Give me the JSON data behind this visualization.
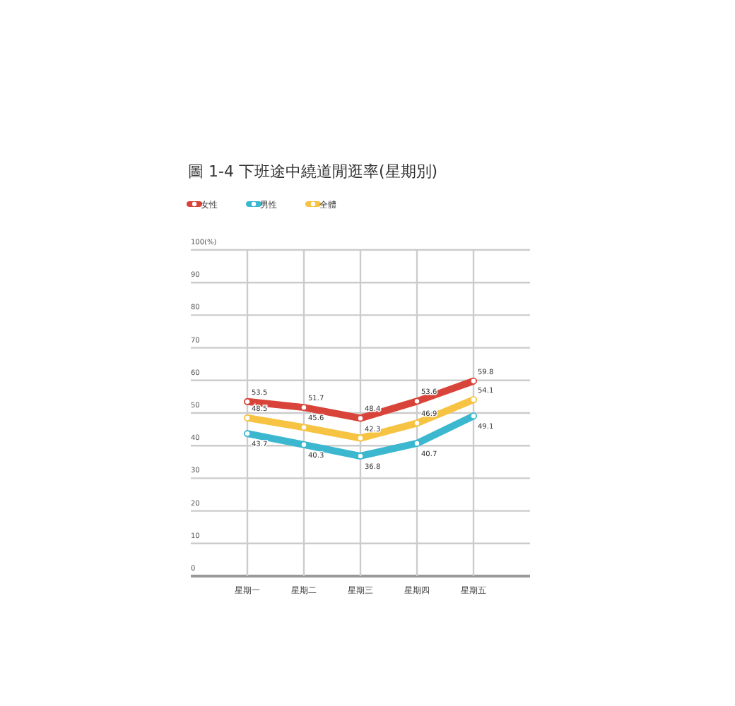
{
  "chart_data": {
    "type": "line",
    "title": "圖 1-4 下班途中繞道閒逛率(星期別)",
    "categories": [
      "星期一",
      "星期二",
      "星期三",
      "星期四",
      "星期五"
    ],
    "series": [
      {
        "name": "女性",
        "color": "#d9443a",
        "values": [
          53.5,
          51.7,
          48.4,
          53.6,
          59.8
        ]
      },
      {
        "name": "男性",
        "color": "#3bb8d0",
        "values": [
          43.7,
          40.3,
          36.8,
          40.7,
          49.1
        ]
      },
      {
        "name": "全體",
        "color": "#f6c343",
        "values": [
          48.5,
          45.6,
          42.3,
          46.9,
          54.1
        ]
      }
    ],
    "ylim": [
      0,
      100
    ],
    "yticks": [
      0,
      10,
      20,
      30,
      40,
      50,
      60,
      70,
      80,
      90,
      {
        "value": 100,
        "label": "100(%)"
      }
    ],
    "grid": true,
    "legend": "top left",
    "marker": "circle",
    "data_labels": true
  }
}
